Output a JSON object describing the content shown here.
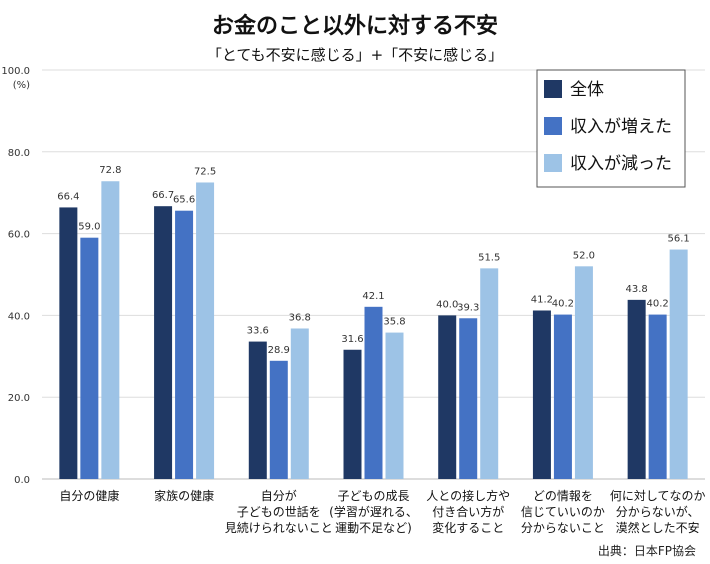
{
  "chart_data": {
    "type": "bar",
    "title": "お金のこと以外に対する不安",
    "subtitle": "「とても不安に感じる」+「不安に感じる」",
    "ylabel": "(%)",
    "ylim": [
      0,
      100
    ],
    "yticks": [
      "0.0",
      "20.0",
      "40.0",
      "60.0",
      "80.0",
      "100.0"
    ],
    "grid": true,
    "legend_position": "top-right",
    "categories": [
      "自分の健康",
      "家族の健康",
      "自分が\n子どもの世話を\n見続けられないこと",
      "子どもの成長\n(学習が遅れる、\n運動不足など)",
      "人との接し方や\n付き合い方が\n変化すること",
      "どの情報を\n信じていいのか\n分からないこと",
      "何に対してなのか\n分からないが、\n漠然とした不安"
    ],
    "series": [
      {
        "name": "全体",
        "color": "#1f3864",
        "values": [
          66.4,
          66.7,
          33.6,
          31.6,
          40.0,
          41.2,
          43.8
        ]
      },
      {
        "name": "収入が増えた",
        "color": "#4472c4",
        "values": [
          59.0,
          65.6,
          28.9,
          42.1,
          39.3,
          40.2,
          40.2
        ]
      },
      {
        "name": "収入が減った",
        "color": "#9dc3e6",
        "values": [
          72.8,
          72.5,
          36.8,
          35.8,
          51.5,
          52.0,
          56.1
        ]
      }
    ],
    "source": "出典：日本FP協会"
  }
}
